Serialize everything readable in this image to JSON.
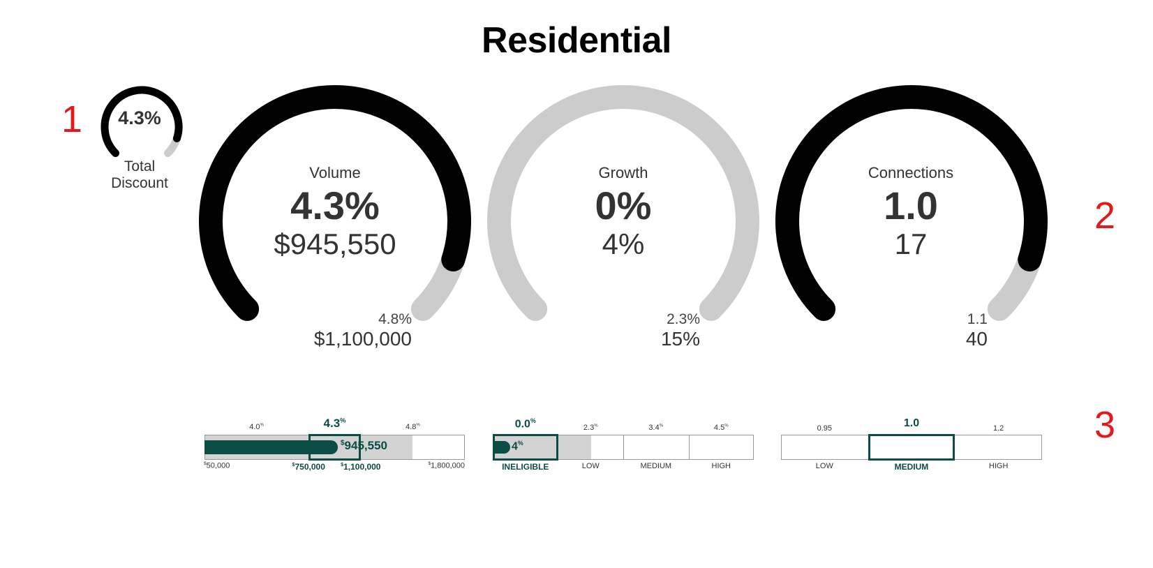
{
  "title": "Residential",
  "markers": [
    "1",
    "2",
    "3"
  ],
  "colors": {
    "filled": "#000000",
    "track": "#cccccc",
    "accent": "#0b4d45",
    "marker": "#e3191c"
  },
  "total_discount": {
    "value": "4.3%",
    "label_line1": "Total",
    "label_line2": "Discount",
    "fill_fraction": 0.9
  },
  "gauges": [
    {
      "label": "Volume",
      "value": "4.3%",
      "sub": "$945,550",
      "target_pct": "4.8%",
      "target_value": "$1,100,000",
      "fill_fraction": 0.9
    },
    {
      "label": "Growth",
      "value": "0%",
      "sub": "4%",
      "target_pct": "2.3%",
      "target_value": "15%",
      "fill_fraction": 0.0
    },
    {
      "label": "Connections",
      "value": "1.0",
      "sub": "17",
      "target_pct": "1.1",
      "target_value": "40",
      "fill_fraction": 0.9
    }
  ],
  "chart_data": [
    {
      "type": "bullet",
      "name_hint": "volume",
      "range": [
        50000,
        1800000
      ],
      "value": 945550,
      "value_label": "945,550",
      "value_prefix": "$",
      "highlight_band": [
        750000,
        1100000
      ],
      "highlight_pct": "4.3",
      "scale_labels": [
        {
          "pos": 50000,
          "prefix": "$",
          "text": "50,000"
        },
        {
          "pos": 750000,
          "prefix": "$",
          "text": "750,000",
          "bold": true
        },
        {
          "pos": 1100000,
          "prefix": "$",
          "text": "1,100,000",
          "bold": true
        },
        {
          "pos": 1800000,
          "prefix": "$",
          "text": "1,800,000"
        }
      ],
      "top_labels": [
        {
          "pos": 400000,
          "text": "4.0",
          "sup": "%"
        },
        {
          "pos": 925000,
          "text": "4.3",
          "sup": "%",
          "bold": true
        },
        {
          "pos": 1450000,
          "text": "4.8",
          "sup": "%"
        }
      ]
    },
    {
      "type": "bullet",
      "name_hint": "growth",
      "value": 4,
      "value_label": "4",
      "value_sup": "%",
      "highlight_pct": "0.0",
      "segments": [
        {
          "label": "INELIGIBLE",
          "top": "0.0",
          "active": true
        },
        {
          "label": "LOW",
          "top": "2.3"
        },
        {
          "label": "MEDIUM",
          "top": "3.4"
        },
        {
          "label": "HIGH",
          "top": "4.5"
        }
      ],
      "grey_until": 1.5
    },
    {
      "type": "bullet",
      "name_hint": "connections",
      "highlight_pct": "1.0",
      "segments": [
        {
          "label": "LOW",
          "top": "0.95"
        },
        {
          "label": "MEDIUM",
          "top": "1.0",
          "active": true
        },
        {
          "label": "HIGH",
          "top": "1.2"
        }
      ]
    }
  ]
}
